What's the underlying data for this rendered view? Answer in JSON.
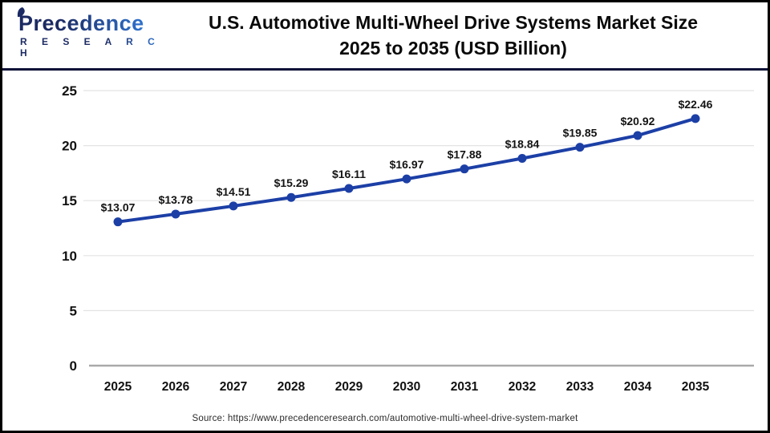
{
  "header": {
    "logo": {
      "wordmark": "Precedence",
      "subtext": "R E S E A R C H"
    },
    "title_line1": "U.S. Automotive Multi-Wheel Drive Systems Market Size",
    "title_line2": "2025 to 2035 (USD Billion)"
  },
  "chart_data": {
    "type": "line",
    "title": "U.S. Automotive Multi-Wheel Drive Systems Market Size 2025 to 2035 (USD Billion)",
    "categories": [
      "2025",
      "2026",
      "2027",
      "2028",
      "2029",
      "2030",
      "2031",
      "2032",
      "2033",
      "2034",
      "2035"
    ],
    "series": [
      {
        "name": "U.S. Automotive Multi-Wheel Drive Systems Market Size (USD Billion)",
        "values": [
          13.07,
          13.78,
          14.51,
          15.29,
          16.11,
          16.97,
          17.88,
          18.84,
          19.85,
          20.92,
          22.46
        ]
      }
    ],
    "point_labels": [
      "$13.07",
      "$13.78",
      "$14.51",
      "$15.29",
      "$16.11",
      "$16.97",
      "$17.88",
      "$18.84",
      "$19.85",
      "$20.92",
      "$22.46"
    ],
    "xlabel": "",
    "ylabel": "",
    "ylim": [
      0,
      25
    ],
    "yticks": [
      0,
      5,
      10,
      15,
      20,
      25
    ],
    "grid": true,
    "legend": "none",
    "line_color": "#1c3fa6",
    "marker": "circle"
  },
  "footer": {
    "source": "Source: https://www.precedenceresearch.com/automotive-multi-wheel-drive-system-market"
  },
  "colors": {
    "line": "#1c3fa6",
    "gridline": "#e3e3e3",
    "zero_axis": "#a9a9a9",
    "tick_label": "#111111",
    "data_label": "#141414",
    "divider_navy": "#0e1238",
    "outer_border": "#000000",
    "logo_navy": "#1b2a63",
    "logo_blue": "#2f74d0"
  }
}
